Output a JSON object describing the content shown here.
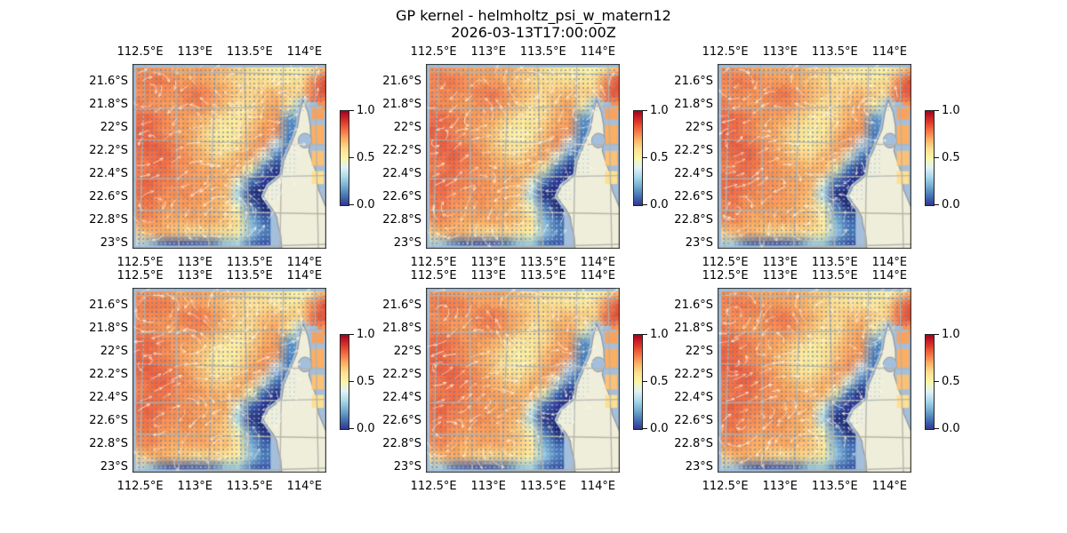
{
  "chart_data": {
    "type": "heatmap",
    "title": "GP kernel - helmholtz_psi_w_matern12",
    "subtitle": "2026-03-13T17:00:00Z",
    "panel_grid": {
      "rows": 2,
      "cols": 3,
      "panels": 6,
      "note": "six visually identical map panels"
    },
    "x_tick_labels": [
      "112.5°E",
      "113°E",
      "113.5°E",
      "114°E"
    ],
    "x_ticks_lon_east": [
      112.5,
      113.0,
      113.5,
      114.0
    ],
    "y_tick_labels": [
      "21.6°S",
      "21.8°S",
      "22°S",
      "22.2°S",
      "22.4°S",
      "22.6°S",
      "22.8°S",
      "23°S"
    ],
    "y_ticks_lat_south": [
      21.6,
      21.8,
      22.0,
      22.2,
      22.4,
      22.6,
      22.8,
      23.0
    ],
    "lon_extent_east": [
      112.43,
      114.2
    ],
    "lat_extent_south": [
      21.45,
      23.05
    ],
    "grid_on": true,
    "colorbar": {
      "tick_labels": [
        "1.0",
        "0.5",
        "0.0"
      ],
      "ticks": [
        1.0,
        0.5,
        0.0
      ],
      "range": [
        0,
        1
      ],
      "colormap": "RdYlBu_r"
    },
    "colormap_stops": [
      [
        -0.2,
        "#141c48"
      ],
      [
        0.0,
        "#313695"
      ],
      [
        0.1,
        "#4575b4"
      ],
      [
        0.2,
        "#74add1"
      ],
      [
        0.3,
        "#abd9e9"
      ],
      [
        0.4,
        "#e0f3f8"
      ],
      [
        0.5,
        "#fbf6a9"
      ],
      [
        0.6,
        "#fee090"
      ],
      [
        0.7,
        "#fdae61"
      ],
      [
        0.8,
        "#f46d43"
      ],
      [
        0.9,
        "#d73027"
      ],
      [
        1.0,
        "#a50026"
      ]
    ],
    "field_rows": 15,
    "field_cols": 16,
    "field": [
      [
        0.74,
        0.74,
        0.72,
        0.7,
        0.7,
        0.72,
        0.7,
        0.68,
        0.64,
        0.6,
        0.56,
        0.54,
        0.52,
        0.5,
        0.55,
        0.68
      ],
      [
        0.76,
        0.78,
        0.78,
        0.75,
        0.72,
        0.72,
        0.7,
        0.66,
        0.62,
        0.6,
        0.6,
        0.58,
        0.56,
        0.6,
        0.75,
        0.85
      ],
      [
        0.74,
        0.76,
        0.75,
        0.74,
        0.77,
        0.79,
        0.74,
        0.7,
        0.65,
        0.62,
        0.66,
        0.68,
        0.64,
        0.62,
        0.8,
        0.85
      ],
      [
        0.78,
        0.75,
        0.73,
        0.72,
        0.75,
        0.76,
        0.72,
        0.66,
        0.6,
        0.6,
        0.68,
        0.72,
        0.55,
        0.3,
        null,
        0.72
      ],
      [
        0.8,
        0.81,
        0.78,
        0.74,
        0.72,
        0.7,
        0.64,
        0.58,
        0.56,
        0.62,
        0.7,
        0.72,
        0.15,
        null,
        null,
        null
      ],
      [
        0.82,
        0.8,
        0.76,
        0.73,
        0.71,
        0.66,
        0.57,
        0.53,
        0.56,
        0.66,
        0.72,
        0.74,
        0.12,
        null,
        null,
        null
      ],
      [
        0.8,
        0.83,
        0.8,
        0.76,
        0.72,
        0.66,
        0.58,
        0.54,
        0.6,
        0.7,
        0.75,
        0.4,
        0.1,
        null,
        null,
        null
      ],
      [
        0.78,
        0.8,
        0.82,
        0.78,
        0.74,
        0.7,
        0.64,
        0.62,
        0.68,
        0.72,
        0.45,
        0.12,
        0.05,
        null,
        null,
        null
      ],
      [
        0.76,
        0.78,
        0.8,
        0.76,
        0.74,
        0.72,
        0.7,
        0.68,
        0.7,
        0.5,
        0.1,
        -0.05,
        0.08,
        null,
        null,
        null
      ],
      [
        0.8,
        0.82,
        0.78,
        0.76,
        0.74,
        0.72,
        0.71,
        0.7,
        0.45,
        0.1,
        0.0,
        -0.05,
        null,
        null,
        null,
        null
      ],
      [
        0.78,
        0.8,
        0.76,
        0.74,
        0.75,
        0.73,
        0.71,
        0.66,
        0.3,
        -0.05,
        -0.12,
        0.06,
        null,
        null,
        null,
        null
      ],
      [
        0.76,
        0.78,
        0.74,
        0.72,
        0.73,
        0.71,
        0.69,
        0.64,
        0.48,
        0.12,
        -0.08,
        null,
        null,
        null,
        null,
        null
      ],
      [
        0.74,
        0.76,
        0.72,
        0.7,
        0.71,
        0.72,
        0.7,
        0.66,
        0.58,
        0.22,
        0.08,
        null,
        null,
        null,
        null,
        null
      ],
      [
        0.62,
        0.68,
        0.7,
        0.66,
        0.62,
        0.6,
        0.62,
        0.6,
        0.54,
        0.28,
        0.12,
        null,
        null,
        null,
        null,
        null
      ],
      [
        0.32,
        0.25,
        0.1,
        0.05,
        0.04,
        0.05,
        0.08,
        0.22,
        0.26,
        0.08,
        0.04,
        null,
        null,
        null,
        null,
        null
      ]
    ],
    "land_polygon": [
      [
        0.88,
        0.195
      ],
      [
        0.905,
        0.26
      ],
      [
        0.917,
        0.33
      ],
      [
        0.92,
        0.4
      ],
      [
        0.91,
        0.47
      ],
      [
        0.925,
        0.52
      ],
      [
        0.945,
        0.58
      ],
      [
        0.955,
        0.63
      ],
      [
        0.96,
        0.68
      ],
      [
        0.98,
        0.73
      ],
      [
        1.0,
        0.78
      ],
      [
        1.0,
        1.0
      ],
      [
        0.77,
        1.0
      ],
      [
        0.765,
        0.93
      ],
      [
        0.75,
        0.87
      ],
      [
        0.745,
        0.83
      ],
      [
        0.725,
        0.79
      ],
      [
        0.7,
        0.755
      ],
      [
        0.675,
        0.715
      ],
      [
        0.7,
        0.66
      ],
      [
        0.73,
        0.635
      ],
      [
        0.77,
        0.6
      ],
      [
        0.78,
        0.525
      ],
      [
        0.815,
        0.44
      ],
      [
        0.85,
        0.35
      ],
      [
        0.862,
        0.27
      ]
    ],
    "lake": {
      "cx": 0.89,
      "cy": 0.415,
      "rx": 0.016,
      "ry": 0.04
    },
    "gulf_cells": [
      [
        0.24,
        0.3,
        0.72
      ],
      [
        0.33,
        0.43,
        0.7
      ],
      [
        0.47,
        0.55,
        0.66
      ],
      [
        0.58,
        0.65,
        0.6
      ]
    ],
    "colors": {
      "background": "#ffffff",
      "ocean": "#a4bfdc",
      "land": "#efeeda",
      "coast": "#97999b",
      "grid": "#b3b2aa",
      "frame": "#2b2b2b",
      "arrow": "#fff7e4",
      "dot_on_warm": "#5676ae",
      "dot_on_cold": "#a8cfe8"
    },
    "quiver": {
      "note": "white curved streamline arrows over a dense regular grid of small blue observation dots",
      "drift": [
        0.18,
        -0.06
      ],
      "vortices": [
        [
          0.1,
          0.12,
          0.11,
          1
        ],
        [
          0.07,
          0.45,
          0.12,
          -1
        ],
        [
          0.1,
          0.75,
          0.11,
          1
        ],
        [
          0.32,
          0.3,
          0.13,
          -1
        ],
        [
          0.5,
          0.15,
          0.12,
          1
        ],
        [
          0.3,
          0.6,
          0.12,
          1
        ],
        [
          0.45,
          0.85,
          0.11,
          -1
        ],
        [
          0.62,
          0.55,
          0.11,
          1
        ],
        [
          0.55,
          0.38,
          0.1,
          -1
        ],
        [
          0.8,
          0.25,
          0.1,
          -1
        ]
      ]
    }
  }
}
